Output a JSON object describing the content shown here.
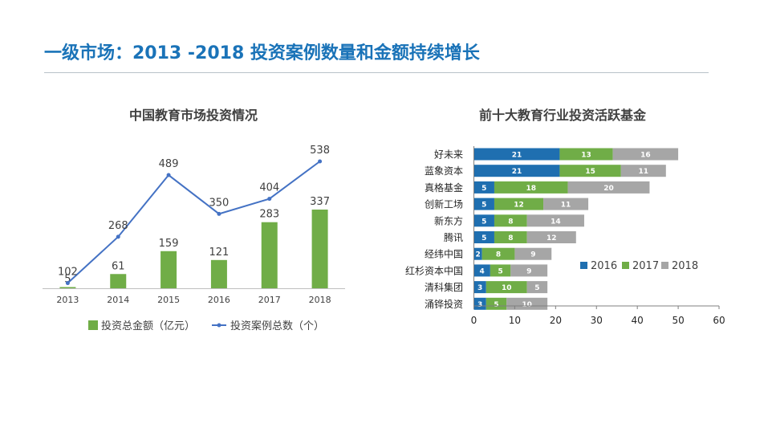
{
  "page": {
    "title": "一级市场：2013 -2018 投资案例数量和金额持续增长"
  },
  "colors": {
    "title": "#1a73b8",
    "green": "#70ad47",
    "line": "#4472c4",
    "blue": "#1f6fb0",
    "grey": "#a6a6a6"
  },
  "chart_data": [
    {
      "type": "bar",
      "title": "中国教育市场投资情况",
      "categories": [
        "2013",
        "2014",
        "2015",
        "2016",
        "2017",
        "2018"
      ],
      "series": [
        {
          "name": "投资总金额（亿元）",
          "type": "bar",
          "values": [
            5,
            61,
            159,
            121,
            283,
            337
          ]
        },
        {
          "name": "投资案例总数（个）",
          "type": "line",
          "values": [
            102,
            268,
            489,
            350,
            404,
            538
          ]
        }
      ],
      "xlabel": "",
      "ylabel": "",
      "ylim": [
        0,
        600
      ]
    },
    {
      "type": "bar",
      "orientation": "horizontal",
      "stacked": true,
      "title": "前十大教育行业投资活跃基金",
      "categories": [
        "好未来",
        "蓝象资本",
        "真格基金",
        "创新工场",
        "新东方",
        "腾讯",
        "经纬中国",
        "红杉资本中国",
        "清科集团",
        "涌铧投资"
      ],
      "series": [
        {
          "name": "2016",
          "values": [
            21,
            21,
            5,
            5,
            5,
            5,
            2,
            4,
            3,
            3
          ]
        },
        {
          "name": "2017",
          "values": [
            13,
            15,
            18,
            12,
            8,
            8,
            8,
            5,
            10,
            5
          ]
        },
        {
          "name": "2018",
          "values": [
            16,
            11,
            20,
            11,
            14,
            12,
            9,
            9,
            5,
            10
          ]
        }
      ],
      "xticks": [
        0,
        10,
        20,
        30,
        40,
        50,
        60
      ],
      "xlim": [
        0,
        60
      ],
      "legend": "right"
    }
  ]
}
